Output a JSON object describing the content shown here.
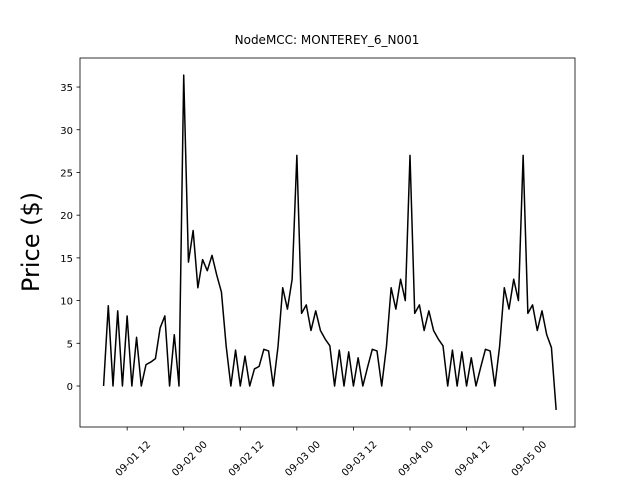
{
  "chart_data": {
    "type": "line",
    "title": "NodeMCC: MONTEREY_6_N001",
    "y_label": "Price ($)",
    "x": [
      "09-01 07",
      "09-01 08",
      "09-01 09",
      "09-01 10",
      "09-01 11",
      "09-01 12",
      "09-01 13",
      "09-01 14",
      "09-01 15",
      "09-01 16",
      "09-01 17",
      "09-01 18",
      "09-01 19",
      "09-01 20",
      "09-01 21",
      "09-01 22",
      "09-01 23",
      "09-02 00",
      "09-02 01",
      "09-02 02",
      "09-02 03",
      "09-02 04",
      "09-02 05",
      "09-02 06",
      "09-02 07",
      "09-02 08",
      "09-02 09",
      "09-02 10",
      "09-02 11",
      "09-02 12",
      "09-02 13",
      "09-02 14",
      "09-02 15",
      "09-02 16",
      "09-02 17",
      "09-02 18",
      "09-02 19",
      "09-02 20",
      "09-02 21",
      "09-02 22",
      "09-02 23",
      "09-03 00",
      "09-03 01",
      "09-03 02",
      "09-03 03",
      "09-03 04",
      "09-03 05",
      "09-03 06",
      "09-03 07",
      "09-03 08",
      "09-03 09",
      "09-03 10",
      "09-03 11",
      "09-03 12",
      "09-03 13",
      "09-03 14",
      "09-03 15",
      "09-03 16",
      "09-03 17",
      "09-03 18",
      "09-03 19",
      "09-03 20",
      "09-03 21",
      "09-03 22",
      "09-03 23",
      "09-04 00",
      "09-04 01",
      "09-04 02",
      "09-04 03",
      "09-04 04",
      "09-04 05",
      "09-04 06",
      "09-04 07",
      "09-04 08",
      "09-04 09",
      "09-04 10",
      "09-04 11",
      "09-04 12",
      "09-04 13",
      "09-04 14",
      "09-04 15",
      "09-04 16",
      "09-04 17",
      "09-04 18",
      "09-04 19",
      "09-04 20",
      "09-04 21",
      "09-04 22",
      "09-04 23",
      "09-05 00",
      "09-05 01",
      "09-05 02",
      "09-05 03",
      "09-05 04",
      "09-05 05",
      "09-05 06",
      "09-05 07"
    ],
    "series": [
      {
        "color": "#000000",
        "values": [
          0,
          9.4,
          0,
          8.8,
          0,
          8.2,
          0,
          5.7,
          0,
          2.5,
          2.8,
          3.2,
          6.8,
          8.2,
          0,
          6.0,
          0,
          36.4,
          14.5,
          18.2,
          11.5,
          14.8,
          13.5,
          15.3,
          13.0,
          11.0,
          4.7,
          0,
          4.2,
          0,
          3.5,
          0,
          2.0,
          2.3,
          4.3,
          4.1,
          0,
          4.6,
          11.5,
          9.0,
          12.5,
          27.0,
          8.5,
          9.5,
          6.5,
          8.8,
          6.5,
          5.5,
          4.7,
          0,
          4.2,
          0,
          4.0,
          0,
          3.3,
          0,
          2.2,
          4.3,
          4.1,
          0,
          4.6,
          11.5,
          9.0,
          12.5,
          10.0,
          27.0,
          8.5,
          9.5,
          6.5,
          8.8,
          6.5,
          5.5,
          4.7,
          0,
          4.2,
          0,
          4.0,
          0,
          3.3,
          0,
          2.2,
          4.3,
          4.1,
          0,
          4.6,
          11.5,
          9.0,
          12.5,
          10.0,
          27.0,
          8.5,
          9.5,
          6.5,
          8.8,
          6.0,
          4.5,
          -2.8
        ]
      }
    ],
    "xlim": [
      "09-01 02",
      "09-05 11"
    ],
    "xticks": [
      "09-01 12",
      "09-02 00",
      "09-02 12",
      "09-03 00",
      "09-03 12",
      "09-04 00",
      "09-04 12",
      "09-05 00"
    ],
    "ylim": [
      -4.8,
      38.4
    ],
    "yticks": [
      0,
      5,
      10,
      15,
      20,
      25,
      30,
      35
    ]
  }
}
